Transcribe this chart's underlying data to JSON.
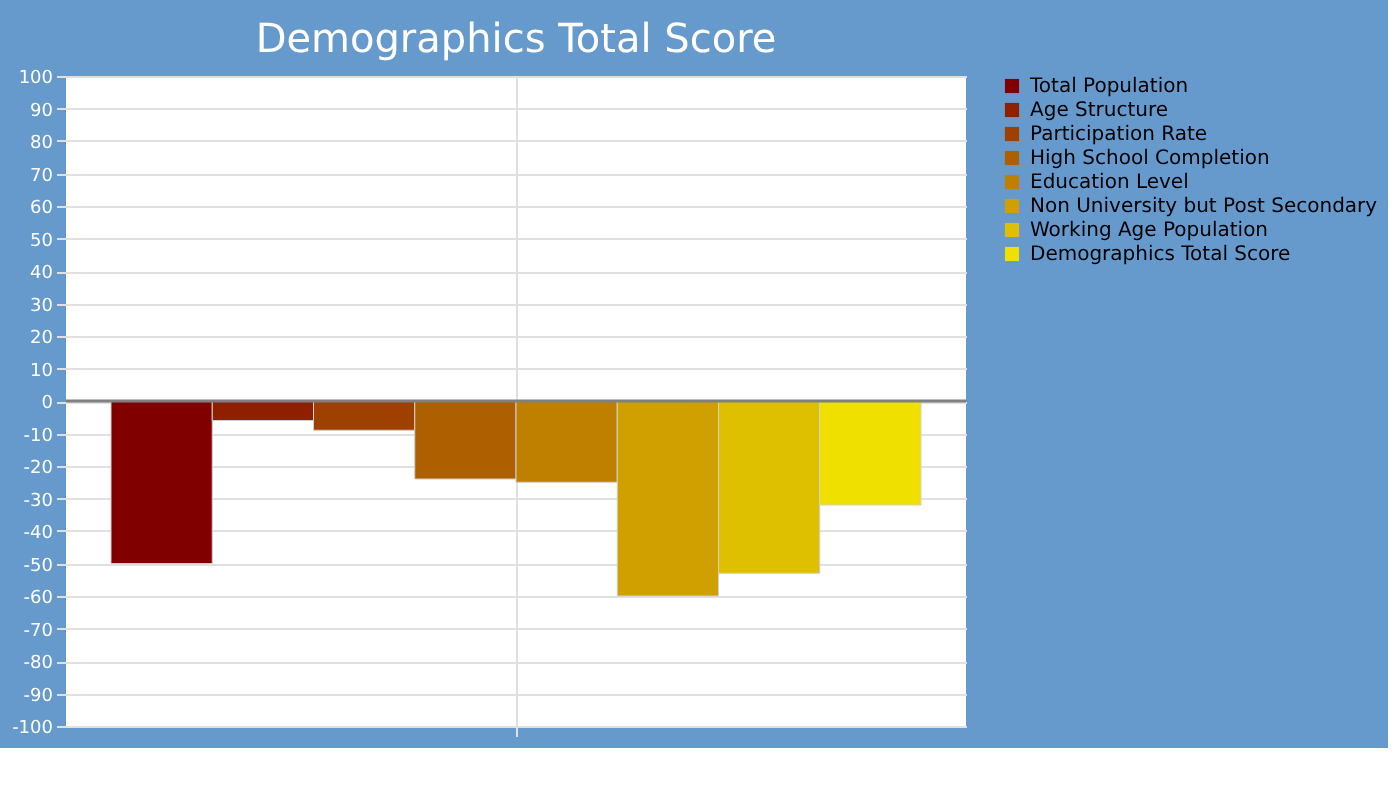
{
  "chart_data": {
    "type": "bar",
    "title": "Demographics Total Score",
    "categories": [
      null
    ],
    "series": [
      {
        "name": "Total Population",
        "color": "#800000",
        "values": [
          -50
        ]
      },
      {
        "name": "Age Structure",
        "color": "#8e2000",
        "values": [
          -6
        ]
      },
      {
        "name": "Participation Rate",
        "color": "#9e4000",
        "values": [
          -9
        ]
      },
      {
        "name": "High School Completion",
        "color": "#ae6000",
        "values": [
          -24
        ]
      },
      {
        "name": "Education Level",
        "color": "#bf8000",
        "values": [
          -25
        ]
      },
      {
        "name": "Non University but Post Secondary",
        "color": "#cfa000",
        "values": [
          -60
        ]
      },
      {
        "name": "Working Age Population",
        "color": "#dfc000",
        "values": [
          -53
        ]
      },
      {
        "name": "Demographics Total Score",
        "color": "#efe000",
        "values": [
          -32
        ]
      }
    ],
    "ylim": [
      -100,
      100
    ],
    "yticks": [
      -100,
      -90,
      -80,
      -70,
      -60,
      -50,
      -40,
      -30,
      -20,
      -10,
      0,
      10,
      20,
      30,
      40,
      50,
      60,
      70,
      80,
      90,
      100
    ],
    "ref_lines": [
      {
        "axis": "y",
        "value": 0,
        "color": "#808080"
      }
    ],
    "grid": true,
    "legend": "right",
    "tick_labels": "y"
  }
}
